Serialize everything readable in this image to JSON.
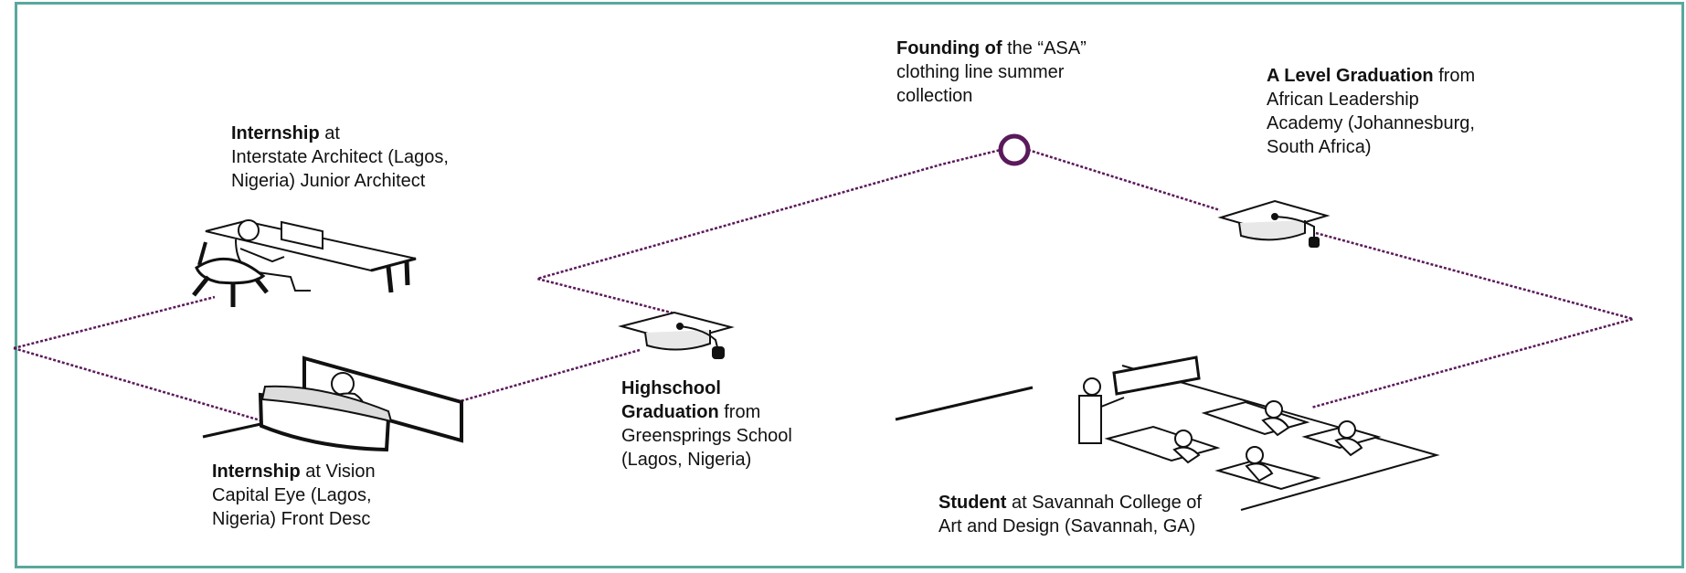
{
  "colors": {
    "border": "#5aa89c",
    "path": "#5a1a5a",
    "ink": "#111111"
  },
  "milestones": [
    {
      "id": "founding",
      "bold": "Founding of",
      "rest": " the “ASA” clothing line summer collection",
      "lines": [
        "",
        "clothing line summer",
        "collection"
      ],
      "first": " the “ASA”",
      "icon": "ring-icon"
    },
    {
      "id": "a-level",
      "bold": "A Level Graduation",
      "first": " from",
      "lines": [
        "",
        "African Leadership",
        "Academy (Johannesburg,",
        "South Africa)"
      ],
      "icon": "graduation-cap-icon"
    },
    {
      "id": "internship-architect",
      "bold": "Internship",
      "first": " at",
      "lines": [
        "",
        "Interstate Architect (Lagos,",
        "Nigeria) Junior Architect"
      ],
      "icon": "desk-worker-icon"
    },
    {
      "id": "highschool",
      "bold": "Highschool",
      "first": "",
      "bold2": "Graduation",
      "second": " from",
      "lines": [
        "",
        "",
        "Greensprings School",
        "(Lagos, Nigeria)"
      ],
      "icon": "graduation-cap-icon"
    },
    {
      "id": "internship-vision",
      "bold": "Internship",
      "first": " at Vision",
      "lines": [
        "",
        "Capital Eye (Lagos,",
        "Nigeria) Front Desc"
      ],
      "icon": "reception-desk-icon"
    },
    {
      "id": "student",
      "bold": "Student",
      "first": " at Savannah College of",
      "lines": [
        "",
        "Art and Design (Savannah, GA)"
      ],
      "icon": "classroom-icon"
    }
  ]
}
